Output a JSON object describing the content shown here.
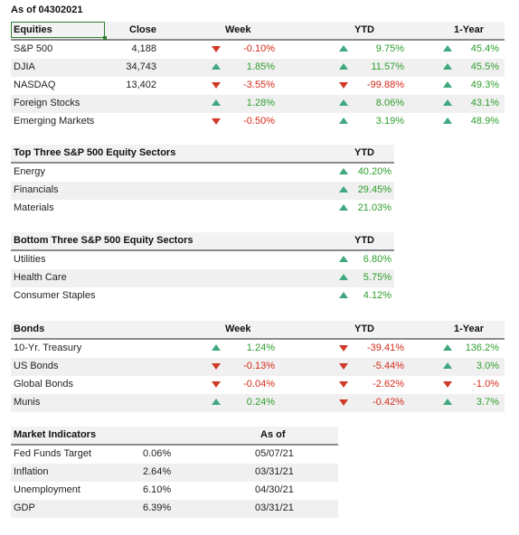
{
  "as_of": "As of 04302021",
  "equities": {
    "headers": {
      "name": "Equities",
      "close": "Close",
      "week": "Week",
      "ytd": "YTD",
      "year": "1-Year"
    },
    "rows": [
      {
        "name": "S&P 500",
        "close": "4,188",
        "week": {
          "dir": "down",
          "value": "-0.10%"
        },
        "ytd": {
          "dir": "up",
          "value": "9.75%"
        },
        "year": {
          "dir": "up",
          "value": "45.4%"
        }
      },
      {
        "name": "DJIA",
        "close": "34,743",
        "week": {
          "dir": "up",
          "value": "1.85%"
        },
        "ytd": {
          "dir": "up",
          "value": "11.57%"
        },
        "year": {
          "dir": "up",
          "value": "45.5%"
        }
      },
      {
        "name": "NASDAQ",
        "close": "13,402",
        "week": {
          "dir": "down",
          "value": "-3.55%"
        },
        "ytd": {
          "dir": "down",
          "value": "-99.88%"
        },
        "year": {
          "dir": "up",
          "value": "49.3%"
        }
      },
      {
        "name": "Foreign Stocks",
        "close": "",
        "week": {
          "dir": "up",
          "value": "1.28%"
        },
        "ytd": {
          "dir": "up",
          "value": "8.06%"
        },
        "year": {
          "dir": "up",
          "value": "43.1%"
        }
      },
      {
        "name": "Emerging Markets",
        "close": "",
        "week": {
          "dir": "down",
          "value": "-0.50%"
        },
        "ytd": {
          "dir": "up",
          "value": "3.19%"
        },
        "year": {
          "dir": "up",
          "value": "48.9%"
        }
      }
    ]
  },
  "top_sectors": {
    "headers": {
      "name": "Top Three S&P 500 Equity Sectors",
      "ytd": "YTD"
    },
    "rows": [
      {
        "name": "Energy",
        "ytd": {
          "dir": "up",
          "value": "40.20%"
        }
      },
      {
        "name": "Financials",
        "ytd": {
          "dir": "up",
          "value": "29.45%"
        }
      },
      {
        "name": "Materials",
        "ytd": {
          "dir": "up",
          "value": "21.03%"
        }
      }
    ]
  },
  "bottom_sectors": {
    "headers": {
      "name": "Bottom Three S&P 500 Equity Sectors",
      "ytd": "YTD"
    },
    "rows": [
      {
        "name": "Utilities",
        "ytd": {
          "dir": "up",
          "value": "6.80%"
        }
      },
      {
        "name": "Health Care",
        "ytd": {
          "dir": "up",
          "value": "5.75%"
        }
      },
      {
        "name": "Consumer Staples",
        "ytd": {
          "dir": "up",
          "value": "4.12%"
        }
      }
    ]
  },
  "bonds": {
    "headers": {
      "name": "Bonds",
      "week": "Week",
      "ytd": "YTD",
      "year": "1-Year"
    },
    "rows": [
      {
        "name": "10-Yr. Treasury",
        "week": {
          "dir": "up",
          "value": "1.24%"
        },
        "ytd": {
          "dir": "down",
          "value": "-39.41%"
        },
        "year": {
          "dir": "up",
          "value": "136.2%"
        }
      },
      {
        "name": "US Bonds",
        "week": {
          "dir": "down",
          "value": "-0.13%"
        },
        "ytd": {
          "dir": "down",
          "value": "-5.44%"
        },
        "year": {
          "dir": "up",
          "value": "3.0%"
        }
      },
      {
        "name": "Global Bonds",
        "week": {
          "dir": "down",
          "value": "-0.04%"
        },
        "ytd": {
          "dir": "down",
          "value": "-2.62%"
        },
        "year": {
          "dir": "down",
          "value": "-1.0%"
        }
      },
      {
        "name": "Munis",
        "week": {
          "dir": "up",
          "value": "0.24%"
        },
        "ytd": {
          "dir": "down",
          "value": "-0.42%"
        },
        "year": {
          "dir": "up",
          "value": "3.7%"
        }
      }
    ]
  },
  "market_indicators": {
    "headers": {
      "name": "Market Indicators",
      "asof": "As of"
    },
    "rows": [
      {
        "name": "Fed Funds Target",
        "value": "0.06%",
        "date": "05/07/21"
      },
      {
        "name": "Inflation",
        "value": "2.64%",
        "date": "03/31/21"
      },
      {
        "name": "Unemployment",
        "value": "6.10%",
        "date": "04/30/21"
      },
      {
        "name": "GDP",
        "value": "6.39%",
        "date": "03/31/21"
      }
    ]
  },
  "colors": {
    "positive": "#2e9e2e",
    "negative": "#d42a1a",
    "arrow_up": "#3fa87c",
    "arrow_down": "#cf3b28",
    "header_rule": "#8a8a8a",
    "row_shade": "#f0f0f0"
  }
}
